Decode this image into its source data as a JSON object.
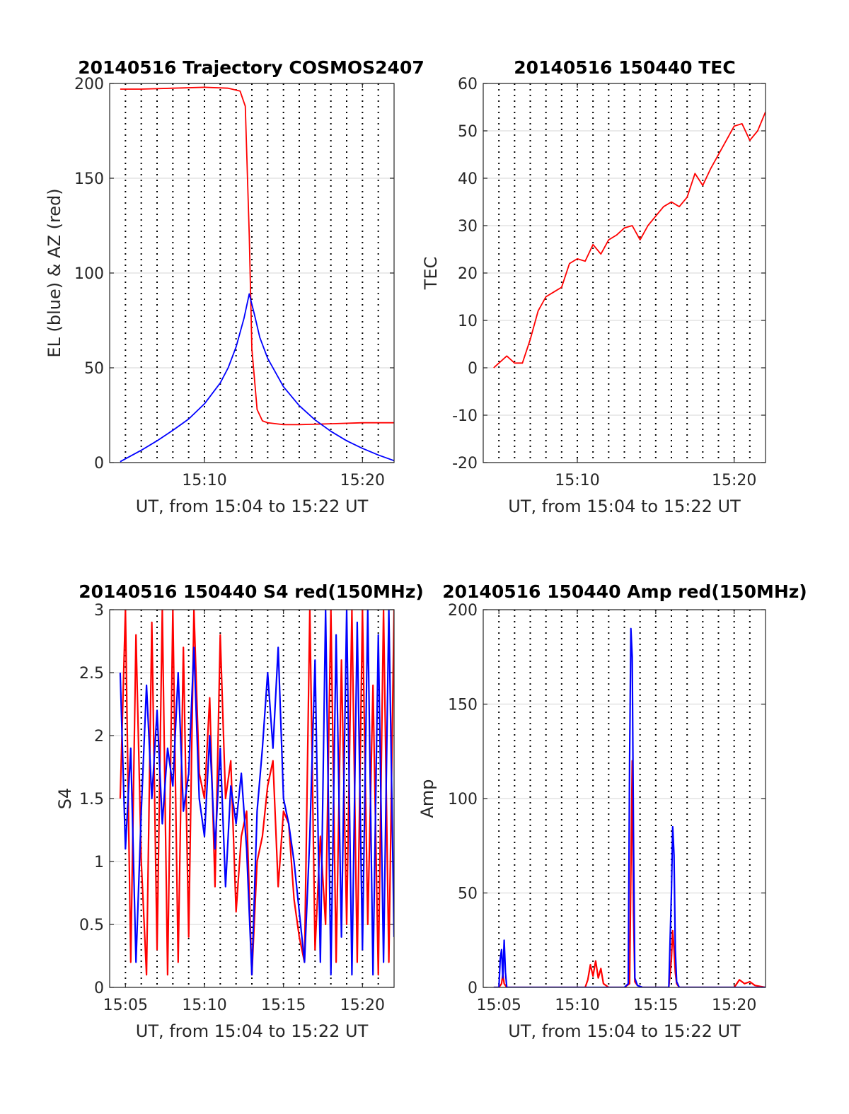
{
  "panels": [
    {
      "title": "20140516 Trajectory COSMOS2407",
      "xlabel": "UT, from 15:04 to 15:22 UT",
      "ylabel": "EL (blue) & AZ (red)",
      "ytick_labels": [
        "0",
        "50",
        "100",
        "150",
        "200"
      ],
      "xtick_labels": [
        "15:10",
        "15:20"
      ]
    },
    {
      "title": "20140516 150440 TEC",
      "xlabel": "UT, from 15:04 to 15:22 UT",
      "ylabel": "TEC",
      "ytick_labels": [
        "-20",
        "-10",
        "0",
        "10",
        "20",
        "30",
        "40",
        "50",
        "60"
      ],
      "xtick_labels": [
        "15:10",
        "15:20"
      ]
    },
    {
      "title": "20140516 150440 S4 red(150MHz)",
      "xlabel": "UT, from 15:04 to 15:22 UT",
      "ylabel": "S4",
      "ytick_labels": [
        "0",
        "0.5",
        "1",
        "1.5",
        "2",
        "2.5",
        "3"
      ],
      "xtick_labels": [
        "15:05",
        "15:10",
        "15:15",
        "15:20"
      ]
    },
    {
      "title": "20140516 150440 Amp red(150MHz)",
      "xlabel": "UT, from 15:04 to 15:22 UT",
      "ylabel": "Amp",
      "ytick_labels": [
        "0",
        "50",
        "100",
        "150",
        "200"
      ],
      "xtick_labels": [
        "15:05",
        "15:10",
        "15:15",
        "15:20"
      ]
    }
  ],
  "chart_data": [
    {
      "type": "line",
      "title": "20140516 Trajectory COSMOS2407",
      "xlabel": "UT, from 15:04 to 15:22 UT",
      "ylabel": "EL (blue) & AZ (red)",
      "xlim": [
        "15:04",
        "15:22"
      ],
      "ylim": [
        0,
        200
      ],
      "grid": "dotted vertical lines every 1 min, horizontal major grid",
      "series": [
        {
          "color": "#ff0000",
          "x": [
            "15:04:40",
            "15:06:00",
            "15:08:00",
            "15:10:00",
            "15:11:30",
            "15:12:15",
            "15:12:35",
            "15:12:50",
            "15:13:00",
            "15:13:20",
            "15:13:40",
            "15:14:00",
            "15:15:00",
            "15:16:00",
            "15:18:00",
            "15:20:00",
            "15:22:00"
          ],
          "y": [
            197,
            197,
            197.5,
            198,
            197.5,
            196,
            188,
            120,
            60,
            28,
            22,
            21,
            20,
            20,
            20.5,
            21,
            21
          ]
        },
        {
          "color": "#0000ff",
          "x": [
            "15:04:40",
            "15:06:00",
            "15:07:00",
            "15:08:00",
            "15:09:00",
            "15:10:00",
            "15:11:00",
            "15:11:30",
            "15:12:00",
            "15:12:30",
            "15:12:50",
            "15:13:10",
            "15:13:30",
            "15:14:00",
            "15:15:00",
            "15:16:00",
            "15:17:00",
            "15:18:00",
            "15:19:00",
            "15:20:00",
            "15:21:00",
            "15:22:00"
          ],
          "y": [
            0.5,
            6.5,
            11.5,
            17,
            23,
            31,
            42,
            50,
            61,
            76,
            89,
            78,
            66,
            55,
            40,
            30,
            22.5,
            16.5,
            11.5,
            7.5,
            4,
            1
          ]
        }
      ]
    },
    {
      "type": "line",
      "title": "20140516 150440 TEC",
      "xlabel": "UT, from 15:04 to 15:22 UT",
      "ylabel": "TEC",
      "xlim": [
        "15:04",
        "15:22"
      ],
      "ylim": [
        -20,
        60
      ],
      "grid": "dotted vertical lines every 1 min, horizontal major grid",
      "series": [
        {
          "color": "#ff0000",
          "x": [
            "15:04:40",
            "15:05:00",
            "15:05:30",
            "15:06:00",
            "15:06:30",
            "15:07:00",
            "15:07:30",
            "15:08:00",
            "15:08:30",
            "15:09:00",
            "15:09:30",
            "15:10:00",
            "15:10:30",
            "15:11:00",
            "15:11:30",
            "15:12:00",
            "15:12:30",
            "15:13:00",
            "15:13:30",
            "15:14:00",
            "15:14:30",
            "15:15:00",
            "15:15:30",
            "15:16:00",
            "15:16:30",
            "15:17:00",
            "15:17:30",
            "15:18:00",
            "15:18:30",
            "15:19:00",
            "15:19:30",
            "15:20:00",
            "15:20:30",
            "15:21:00",
            "15:21:30",
            "15:22:00"
          ],
          "y": [
            0,
            1,
            2.5,
            1,
            1,
            6,
            12,
            15,
            16,
            17,
            22,
            23,
            22.5,
            26,
            24,
            27,
            28,
            29.5,
            30,
            27,
            30,
            32,
            34,
            35,
            34,
            36,
            41,
            38.5,
            42,
            45,
            48,
            51,
            51.5,
            48,
            50,
            54
          ]
        }
      ]
    },
    {
      "type": "line",
      "title": "20140516 150440 S4 red(150MHz)",
      "xlabel": "UT, from 15:04 to 15:22 UT",
      "ylabel": "S4",
      "xlim": [
        "15:04",
        "15:22"
      ],
      "ylim": [
        0,
        3
      ],
      "grid": "dotted vertical lines every 1 min, horizontal major grid",
      "series": [
        {
          "color": "#ff0000",
          "x": [
            "15:04:40",
            "15:05:00",
            "15:05:20",
            "15:05:40",
            "15:06:00",
            "15:06:20",
            "15:06:40",
            "15:07:00",
            "15:07:20",
            "15:07:40",
            "15:08:00",
            "15:08:20",
            "15:08:40",
            "15:09:00",
            "15:09:20",
            "15:09:40",
            "15:10:00",
            "15:10:20",
            "15:10:40",
            "15:11:00",
            "15:11:20",
            "15:11:40",
            "15:12:00",
            "15:12:20",
            "15:12:40",
            "15:13:00",
            "15:13:20",
            "15:13:40",
            "15:14:00",
            "15:14:20",
            "15:14:40",
            "15:15:00",
            "15:15:20",
            "15:15:40",
            "15:16:00",
            "15:16:20",
            "15:16:40",
            "15:17:00",
            "15:17:20",
            "15:17:40",
            "15:18:00",
            "15:18:20",
            "15:18:40",
            "15:19:00",
            "15:19:20",
            "15:19:40",
            "15:20:00",
            "15:20:20",
            "15:20:40",
            "15:21:00",
            "15:21:20",
            "15:21:40",
            "15:22:00"
          ],
          "y": [
            1.5,
            3,
            0.2,
            2.8,
            1.0,
            0.1,
            2.9,
            0.3,
            3,
            0.1,
            3,
            0.2,
            2.7,
            0.4,
            3,
            1.7,
            1.5,
            2.3,
            0.8,
            2.8,
            1.5,
            1.8,
            0.6,
            1.2,
            1.4,
            0.1,
            1.0,
            1.2,
            1.6,
            1.8,
            0.8,
            1.4,
            1.3,
            0.7,
            0.4,
            0.2,
            3,
            0.3,
            1.2,
            0.5,
            3,
            0.2,
            2.6,
            0.5,
            3,
            0.2,
            3,
            0.5,
            2.4,
            0.1,
            3,
            0.2,
            3
          ]
        },
        {
          "color": "#0000ff",
          "x": [
            "15:04:40",
            "15:05:00",
            "15:05:20",
            "15:05:40",
            "15:06:00",
            "15:06:20",
            "15:06:40",
            "15:07:00",
            "15:07:20",
            "15:07:40",
            "15:08:00",
            "15:08:20",
            "15:08:40",
            "15:09:00",
            "15:09:20",
            "15:09:40",
            "15:10:00",
            "15:10:20",
            "15:10:40",
            "15:11:00",
            "15:11:20",
            "15:11:40",
            "15:12:00",
            "15:12:20",
            "15:12:40",
            "15:13:00",
            "15:13:20",
            "15:13:40",
            "15:14:00",
            "15:14:20",
            "15:14:40",
            "15:15:00",
            "15:15:20",
            "15:15:40",
            "15:16:00",
            "15:16:20",
            "15:16:40",
            "15:17:00",
            "15:17:20",
            "15:17:40",
            "15:18:00",
            "15:18:20",
            "15:18:40",
            "15:19:00",
            "15:19:20",
            "15:19:40",
            "15:20:00",
            "15:20:20",
            "15:20:40",
            "15:21:00",
            "15:21:20",
            "15:21:40",
            "15:22:00"
          ],
          "y": [
            2.5,
            1.1,
            1.9,
            0.2,
            1.4,
            2.4,
            1.5,
            2.2,
            1.3,
            1.9,
            1.6,
            2.5,
            1.4,
            1.7,
            2.7,
            1.5,
            1.2,
            2.0,
            1.1,
            1.9,
            0.8,
            1.6,
            1.3,
            1.7,
            1.1,
            0.1,
            1.4,
            1.9,
            2.5,
            1.9,
            2.7,
            1.5,
            1.3,
            1.0,
            0.6,
            0.2,
            1.2,
            2.6,
            0.2,
            3,
            0.1,
            2.8,
            0.4,
            3,
            0.1,
            2.9,
            0.3,
            3,
            0.1,
            2.8,
            0.2,
            3,
            0.4
          ]
        }
      ]
    },
    {
      "type": "line",
      "title": "20140516 150440 Amp red(150MHz)",
      "xlabel": "UT, from 15:04 to 15:22 UT",
      "ylabel": "Amp",
      "xlim": [
        "15:04",
        "15:22"
      ],
      "ylim": [
        0,
        200
      ],
      "grid": "dotted vertical lines every 1 min, horizontal major grid",
      "series": [
        {
          "color": "#ff0000",
          "x": [
            "15:04:40",
            "15:05:00",
            "15:05:10",
            "15:05:15",
            "15:05:20",
            "15:05:30",
            "15:06:00",
            "15:08:00",
            "15:10:30",
            "15:10:40",
            "15:10:50",
            "15:11:00",
            "15:11:10",
            "15:11:20",
            "15:11:30",
            "15:11:40",
            "15:12:00",
            "15:13:00",
            "15:13:20",
            "15:13:25",
            "15:13:30",
            "15:13:35",
            "15:13:40",
            "15:13:50",
            "15:14:10",
            "15:15:50",
            "15:16:00",
            "15:16:05",
            "15:16:10",
            "15:16:15",
            "15:16:20",
            "15:16:30",
            "15:18:00",
            "15:20:00",
            "15:20:10",
            "15:20:20",
            "15:20:40",
            "15:21:00",
            "15:21:20",
            "15:22:00"
          ],
          "y": [
            0,
            0,
            2,
            7,
            2,
            0,
            0,
            0,
            0,
            4,
            12,
            6,
            14,
            5,
            10,
            2,
            0,
            0,
            2,
            60,
            120,
            40,
            3,
            1,
            0,
            0,
            15,
            30,
            20,
            8,
            2,
            0,
            0,
            0,
            2,
            4,
            2,
            3,
            1,
            0
          ]
        },
        {
          "color": "#0000ff",
          "x": [
            "15:04:40",
            "15:05:00",
            "15:05:05",
            "15:05:10",
            "15:05:15",
            "15:05:20",
            "15:05:25",
            "15:05:30",
            "15:06:00",
            "15:08:00",
            "15:10:00",
            "15:11:00",
            "15:13:00",
            "15:13:15",
            "15:13:20",
            "15:13:25",
            "15:13:30",
            "15:13:35",
            "15:13:40",
            "15:13:50",
            "15:14:10",
            "15:15:50",
            "15:16:00",
            "15:16:05",
            "15:16:10",
            "15:16:15",
            "15:16:20",
            "15:16:30",
            "15:18:00",
            "15:20:00",
            "15:22:00"
          ],
          "y": [
            0,
            0,
            15,
            20,
            5,
            25,
            8,
            0,
            0,
            0,
            0,
            0,
            0,
            2,
            120,
            190,
            175,
            80,
            5,
            1,
            0,
            0,
            50,
            85,
            70,
            20,
            3,
            0,
            0,
            0,
            0
          ]
        }
      ]
    }
  ]
}
